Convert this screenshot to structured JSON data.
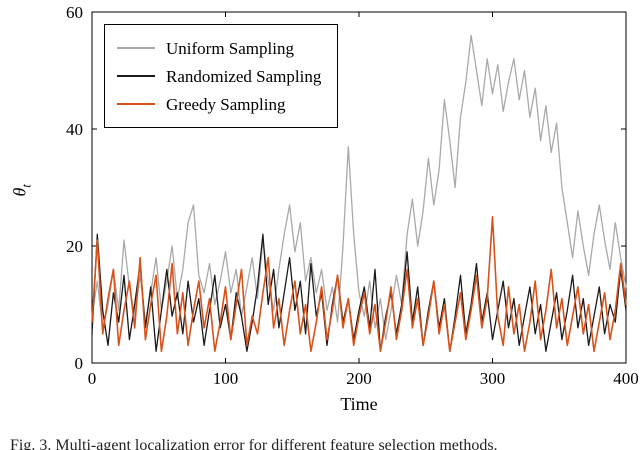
{
  "figure": {
    "caption": "Fig. 3.   Multi-agent localization error for different feature selection methods.",
    "ylabel_main": "θ",
    "ylabel_sub": "t"
  },
  "chart_data": {
    "type": "line",
    "title": "",
    "xlabel": "Time",
    "ylabel": "θ_t",
    "xlim": [
      0,
      400
    ],
    "ylim": [
      0,
      60
    ],
    "xticks": [
      0,
      100,
      200,
      300,
      400
    ],
    "yticks": [
      0,
      20,
      40,
      60
    ],
    "grid": false,
    "legend_position": "top-left",
    "x": [
      0,
      4,
      8,
      12,
      16,
      20,
      24,
      28,
      32,
      36,
      40,
      44,
      48,
      52,
      56,
      60,
      64,
      68,
      72,
      76,
      80,
      84,
      88,
      92,
      96,
      100,
      104,
      108,
      112,
      116,
      120,
      124,
      128,
      132,
      136,
      140,
      144,
      148,
      152,
      156,
      160,
      164,
      168,
      172,
      176,
      180,
      184,
      188,
      192,
      196,
      200,
      204,
      208,
      212,
      216,
      220,
      224,
      228,
      232,
      236,
      240,
      244,
      248,
      252,
      256,
      260,
      264,
      268,
      272,
      276,
      280,
      284,
      288,
      292,
      296,
      300,
      304,
      308,
      312,
      316,
      320,
      324,
      328,
      332,
      336,
      340,
      344,
      348,
      352,
      356,
      360,
      364,
      368,
      372,
      376,
      380,
      384,
      388,
      392,
      396,
      400
    ],
    "series": [
      {
        "name": "Uniform Sampling",
        "color": "#a9a9a9",
        "width": 1.3,
        "values": [
          8,
          14,
          6,
          10,
          16,
          9,
          21,
          13,
          8,
          15,
          7,
          12,
          18,
          9,
          14,
          20,
          11,
          16,
          24,
          27,
          15,
          12,
          17,
          10,
          14,
          19,
          12,
          16,
          8,
          13,
          18,
          11,
          21,
          14,
          9,
          16,
          22,
          27,
          19,
          24,
          14,
          18,
          12,
          16,
          9,
          13,
          7,
          20,
          37,
          22,
          12,
          8,
          14,
          6,
          11,
          4,
          9,
          15,
          10,
          22,
          28,
          20,
          26,
          35,
          27,
          33,
          45,
          38,
          30,
          42,
          48,
          56,
          50,
          44,
          52,
          46,
          51,
          43,
          48,
          52,
          45,
          50,
          42,
          47,
          38,
          44,
          36,
          41,
          30,
          24,
          18,
          26,
          20,
          15,
          22,
          27,
          21,
          16,
          24,
          18,
          13
        ]
      },
      {
        "name": "Randomized Sampling",
        "color": "#1a1a1a",
        "width": 1.3,
        "values": [
          5,
          22,
          9,
          3,
          12,
          7,
          15,
          4,
          10,
          17,
          6,
          13,
          2,
          9,
          16,
          8,
          12,
          5,
          14,
          7,
          11,
          3,
          9,
          15,
          6,
          10,
          4,
          12,
          8,
          2,
          7,
          13,
          22,
          10,
          16,
          6,
          12,
          18,
          9,
          14,
          5,
          17,
          8,
          12,
          3,
          10,
          15,
          7,
          11,
          4,
          9,
          13,
          6,
          16,
          2,
          8,
          12,
          5,
          10,
          19,
          7,
          13,
          3,
          9,
          14,
          6,
          11,
          2,
          8,
          15,
          5,
          10,
          17,
          7,
          12,
          4,
          9,
          14,
          6,
          11,
          3,
          8,
          13,
          5,
          10,
          2,
          7,
          12,
          4,
          9,
          15,
          6,
          11,
          3,
          8,
          13,
          5,
          10,
          7,
          16,
          9
        ]
      },
      {
        "name": "Greedy Sampling",
        "color": "#d9521a",
        "width": 1.6,
        "values": [
          7,
          21,
          5,
          11,
          16,
          3,
          9,
          14,
          6,
          18,
          4,
          10,
          15,
          2,
          8,
          17,
          5,
          12,
          3,
          9,
          14,
          6,
          11,
          2,
          7,
          13,
          4,
          10,
          16,
          3,
          8,
          5,
          12,
          18,
          6,
          11,
          3,
          9,
          14,
          5,
          10,
          2,
          7,
          13,
          4,
          9,
          15,
          6,
          11,
          3,
          8,
          12,
          5,
          10,
          2,
          7,
          13,
          4,
          9,
          16,
          6,
          11,
          3,
          8,
          14,
          5,
          10,
          2,
          7,
          12,
          4,
          9,
          15,
          6,
          11,
          25,
          8,
          3,
          13,
          5,
          10,
          2,
          7,
          14,
          4,
          9,
          16,
          6,
          11,
          3,
          8,
          13,
          5,
          10,
          2,
          7,
          12,
          4,
          9,
          17,
          10
        ]
      }
    ]
  }
}
